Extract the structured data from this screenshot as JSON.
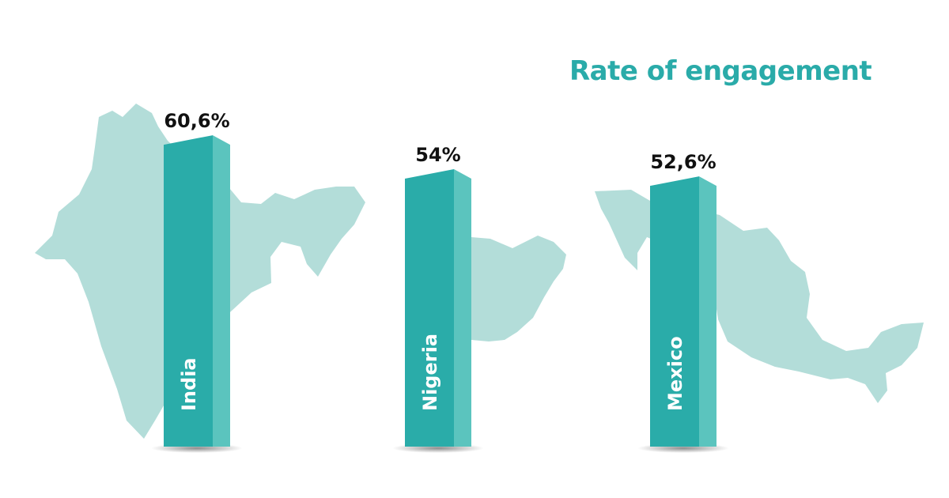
{
  "colors": {
    "title": "#2aaba9",
    "bar_front": "#2aaca9",
    "bar_side": "#5bc4be",
    "map": "#b3ddd9",
    "value_text": "#111111",
    "bar_label": "#ffffff"
  },
  "chart_data": {
    "type": "bar",
    "title": "Rate of engagement",
    "categories": [
      "India",
      "Nigeria",
      "Mexico"
    ],
    "values": [
      60.6,
      54,
      52.6
    ],
    "value_labels": [
      "60,6%",
      "54%",
      "52,6%"
    ],
    "unit": "%",
    "ylim": [
      0,
      100
    ],
    "grid": false,
    "legend": "none",
    "background_shapes": [
      "india-map",
      "nigeria-map",
      "mexico-map"
    ]
  }
}
